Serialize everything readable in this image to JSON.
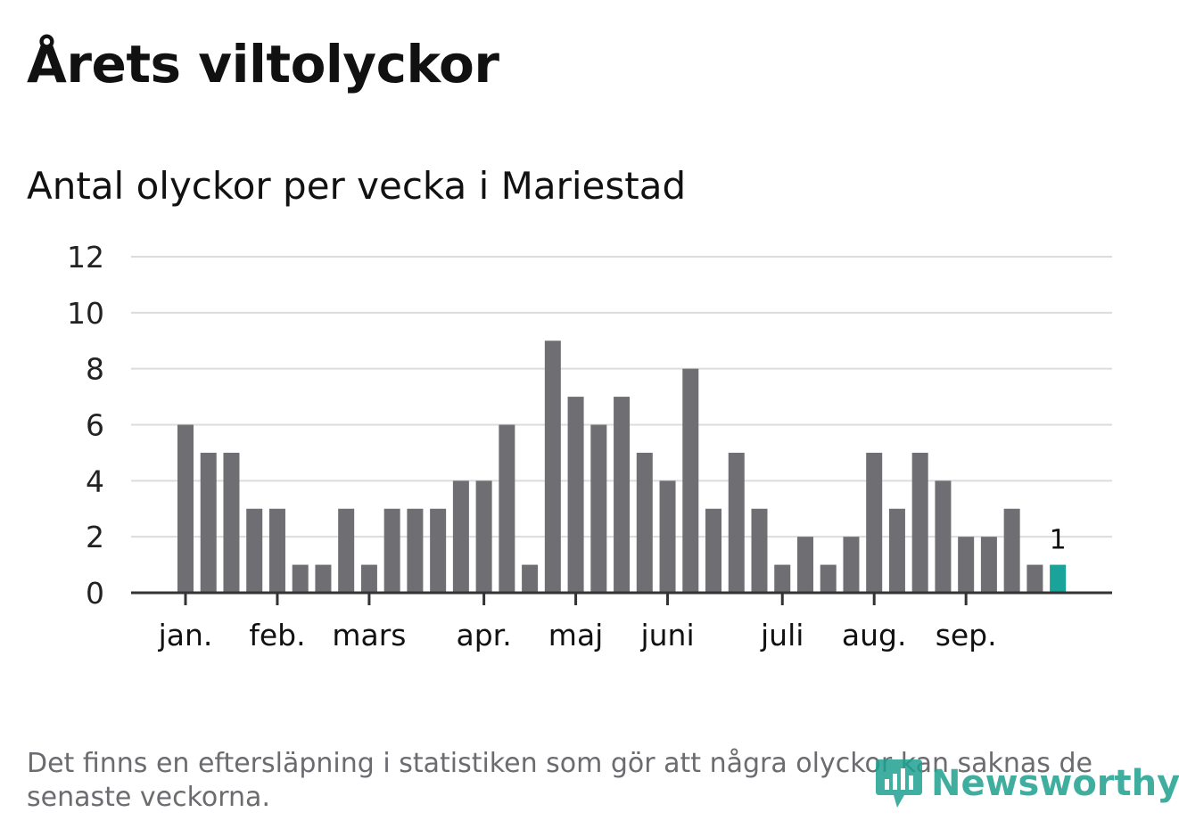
{
  "chart_data": {
    "type": "bar",
    "title": "Årets viltolyckor",
    "subtitle": "Antal olyckor per vecka i Mariestad",
    "ylim": [
      0,
      12
    ],
    "yticks": [
      0,
      2,
      4,
      6,
      8,
      10,
      12
    ],
    "grid": true,
    "values": [
      6,
      5,
      5,
      3,
      3,
      1,
      1,
      3,
      1,
      3,
      3,
      3,
      4,
      4,
      6,
      1,
      9,
      7,
      6,
      7,
      5,
      4,
      8,
      3,
      5,
      3,
      1,
      2,
      1,
      2,
      5,
      3,
      5,
      4,
      2,
      2,
      3,
      1,
      1
    ],
    "month_ticks": [
      {
        "label": "jan.",
        "bar_index": 0
      },
      {
        "label": "feb.",
        "bar_index": 4
      },
      {
        "label": "mars",
        "bar_index": 8
      },
      {
        "label": "apr.",
        "bar_index": 13
      },
      {
        "label": "maj",
        "bar_index": 17
      },
      {
        "label": "juni",
        "bar_index": 21
      },
      {
        "label": "juli",
        "bar_index": 26
      },
      {
        "label": "aug.",
        "bar_index": 30
      },
      {
        "label": "sep.",
        "bar_index": 34
      }
    ],
    "highlight_index": 38,
    "highlight_label": "1",
    "bar_color": "#6f6e73",
    "highlight_color": "#1aa398"
  },
  "footnote": "Det finns en eftersläpning i statistiken som gör att några olyckor kan saknas de senaste veckorna.",
  "brand": {
    "name": "Newsworthy",
    "color": "#1fa08f"
  }
}
